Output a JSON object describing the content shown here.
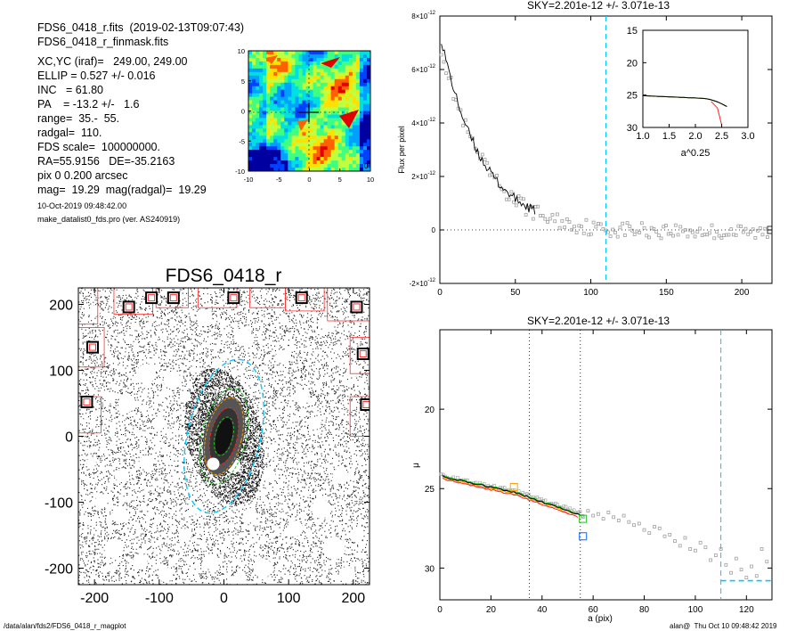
{
  "header": {
    "fits_line": "FDS6_0418_r.fits  (2019-02-13T09:07:43)",
    "mask_line": "FDS6_0418_r_finmask.fits",
    "params": [
      "XC,YC (iraf)=   249.00, 249.00",
      "ELLIP = 0.527 +/- 0.016",
      "INC   = 61.80",
      "PA    = -13.2 +/-   1.6",
      "range=  35.-  55.",
      "radgal=  110.",
      "FDS scale=  100000000.",
      "RA=55.9156   DE=-35.2163",
      "pix 0 0.200 arcsec",
      "mag=  19.29  mag(radgal)=  19.29"
    ],
    "date_line": "10-Oct-2019 09:48:42.00",
    "program_line": "make_datalist0_fds.pro (ver. AS240919)"
  },
  "footer": {
    "path": "/data/alan/fds2/FDS6_0418_r_magplot",
    "user": "alan@  Thu Oct 10 09:48:42 2019"
  },
  "colors": {
    "grey_points": "#a0a0a0",
    "cyan_marker": "#00c8ff",
    "iso_red": "#ff2020",
    "iso_green": "#20c020",
    "iso_orange": "#ffa000",
    "mask_box": "#ff3030"
  },
  "chart_data": [
    {
      "id": "contour_map",
      "type": "heatmap",
      "title": "",
      "xticks": [
        "-10",
        "-5",
        "0",
        "5",
        "10"
      ],
      "yticks": [
        "10",
        "5",
        "0",
        "-5",
        "-10"
      ],
      "xlim": [
        -10,
        10
      ],
      "ylim": [
        -10,
        10
      ],
      "corner_label": "0",
      "palette": [
        "#0000a0",
        "#0040ff",
        "#00a0ff",
        "#00e0e0",
        "#40ff80",
        "#c0ff40",
        "#ffe000",
        "#ff6000",
        "#e00000"
      ]
    },
    {
      "id": "sky_flux",
      "type": "scatter",
      "title": "SKY=2.201e-12 +/- 3.071e-13",
      "ylabel": "Flux per pixel",
      "xlim": [
        0,
        220
      ],
      "ylim": [
        -2e-12,
        8e-12
      ],
      "xticks": [
        "0",
        "50",
        "100",
        "150",
        "200"
      ],
      "yticks": [
        {
          "base": "-2×10",
          "exp": "-12",
          "v": -2e-12
        },
        {
          "base": "0",
          "exp": "",
          "v": 0
        },
        {
          "base": "2×10",
          "exp": "-12",
          "v": 2e-12
        },
        {
          "base": "4×10",
          "exp": "-12",
          "v": 4e-12
        },
        {
          "base": "6×10",
          "exp": "-12",
          "v": 6e-12
        },
        {
          "base": "8×10",
          "exp": "-12",
          "v": 8e-12
        }
      ],
      "vline_x": 110,
      "zero_line": true,
      "inset": {
        "xlabel": "a^0.25",
        "xticks": [
          "1.0",
          "1.5",
          "2.0",
          "2.5",
          "3.0"
        ],
        "yticks": [
          "15",
          "20",
          "25",
          "30"
        ],
        "xlim": [
          1,
          3
        ],
        "ylim": [
          15,
          30
        ]
      }
    },
    {
      "id": "image_panel",
      "type": "scatter",
      "title": "FDS6_0418_r",
      "xticks": [
        "-200",
        "-100",
        "0",
        "100",
        "200"
      ],
      "yticks": [
        "200",
        "100",
        "0",
        "-100",
        "-200"
      ],
      "xlim": [
        -225,
        225
      ],
      "ylim": [
        -225,
        225
      ]
    },
    {
      "id": "profile",
      "type": "scatter",
      "title": "SKY=2.201e-12 +/- 3.071e-13",
      "xlabel": "a (pix)",
      "ylabel": "μ",
      "xlim": [
        0,
        130
      ],
      "ylim": [
        32,
        15
      ],
      "xticks": [
        "0",
        "20",
        "40",
        "60",
        "80",
        "100",
        "120"
      ],
      "yticks": [
        "20",
        "25",
        "30"
      ],
      "range_lines": [
        35,
        55
      ],
      "radgal_line": 110,
      "sky_level": 30.8,
      "grey_points": [
        [
          56,
          26.8
        ],
        [
          58,
          26.4
        ],
        [
          60,
          26.7
        ],
        [
          62,
          26.6
        ],
        [
          64,
          26.9
        ],
        [
          66,
          26.5
        ],
        [
          68,
          26.8
        ],
        [
          70,
          27.0
        ],
        [
          72,
          26.7
        ],
        [
          74,
          27.1
        ],
        [
          76,
          27.3
        ],
        [
          78,
          27.2
        ],
        [
          80,
          27.6
        ],
        [
          82,
          27.8
        ],
        [
          84,
          27.4
        ],
        [
          86,
          27.5
        ],
        [
          88,
          28.0
        ],
        [
          90,
          27.9
        ],
        [
          92,
          28.3
        ],
        [
          94,
          28.6
        ],
        [
          96,
          28.1
        ],
        [
          98,
          28.8
        ],
        [
          100,
          28.9
        ],
        [
          102,
          28.4
        ],
        [
          104,
          28.7
        ],
        [
          106,
          29.5
        ],
        [
          108,
          29.2
        ],
        [
          110,
          28.8
        ],
        [
          112,
          29.8
        ],
        [
          114,
          30.3
        ],
        [
          116,
          29.4
        ],
        [
          118,
          30.1
        ],
        [
          120,
          30.6
        ],
        [
          122,
          29.9
        ],
        [
          124,
          30.5
        ],
        [
          126,
          28.8
        ],
        [
          128,
          29.6
        ]
      ]
    }
  ]
}
